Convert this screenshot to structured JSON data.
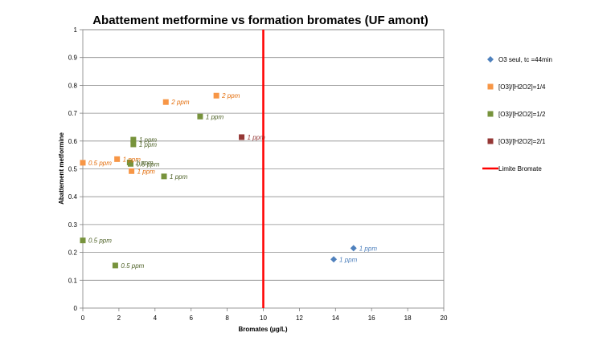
{
  "chart_data": {
    "type": "scatter",
    "title": "Abattement metformine vs formation bromates (UF amont)",
    "xlabel": "Bromates (µg/L)",
    "ylabel": "Abattement metformine",
    "xlim": [
      0,
      20
    ],
    "ylim": [
      0,
      1
    ],
    "xticks": [
      "0",
      "2",
      "4",
      "6",
      "8",
      "10",
      "12",
      "14",
      "16",
      "18",
      "20"
    ],
    "yticks": [
      "0",
      "0.1",
      "0.2",
      "0.3",
      "0.4",
      "0.5",
      "0.6",
      "0.7",
      "0.8",
      "0.9",
      "1"
    ],
    "grid": "horizontal",
    "legend_position": "right",
    "series": [
      {
        "name": "O3 seul, tc =44min",
        "marker": "diamond",
        "color": "#4F81BD",
        "label_color": "#4F81BD",
        "points": [
          {
            "x": 15.0,
            "y": 0.215,
            "label": "1 ppm"
          },
          {
            "x": 13.9,
            "y": 0.175,
            "label": "1 ppm"
          }
        ]
      },
      {
        "name": "[O3]/[H2O2]=1/4",
        "marker": "square",
        "color": "#F79646",
        "label_color": "#E36C09",
        "points": [
          {
            "x": 4.6,
            "y": 0.74,
            "label": "2 ppm"
          },
          {
            "x": 7.4,
            "y": 0.763,
            "label": "2 ppm"
          },
          {
            "x": 1.9,
            "y": 0.535,
            "label": "1 ppm"
          },
          {
            "x": 2.7,
            "y": 0.492,
            "label": "1 ppm"
          },
          {
            "x": 0.0,
            "y": 0.522,
            "label": "0.5 ppm"
          }
        ]
      },
      {
        "name": "[O3]/[H2O2]=1/2",
        "marker": "square",
        "color": "#77933C",
        "label_color": "#4F6228",
        "points": [
          {
            "x": 6.5,
            "y": 0.688,
            "label": "1 ppm"
          },
          {
            "x": 2.8,
            "y": 0.605,
            "label": "1 ppm"
          },
          {
            "x": 2.8,
            "y": 0.588,
            "label": "1 ppm"
          },
          {
            "x": 2.6,
            "y": 0.523,
            "label": "1 ppm"
          },
          {
            "x": 2.65,
            "y": 0.518,
            "label": "0.5 ppm"
          },
          {
            "x": 4.5,
            "y": 0.473,
            "label": "1 ppm"
          },
          {
            "x": 0.0,
            "y": 0.243,
            "label": "0.5 ppm"
          },
          {
            "x": 1.8,
            "y": 0.153,
            "label": "0.5 ppm"
          }
        ]
      },
      {
        "name": "[O3]/[H2O2]=2/1",
        "marker": "square",
        "color": "#953735",
        "label_color": "#953735",
        "points": [
          {
            "x": 8.8,
            "y": 0.614,
            "label": "1 ppm"
          }
        ]
      },
      {
        "name": "Limite Bromate",
        "marker": "line",
        "color": "#FF0000",
        "label_color": "#FF0000",
        "x_value": 10,
        "points": []
      }
    ]
  }
}
